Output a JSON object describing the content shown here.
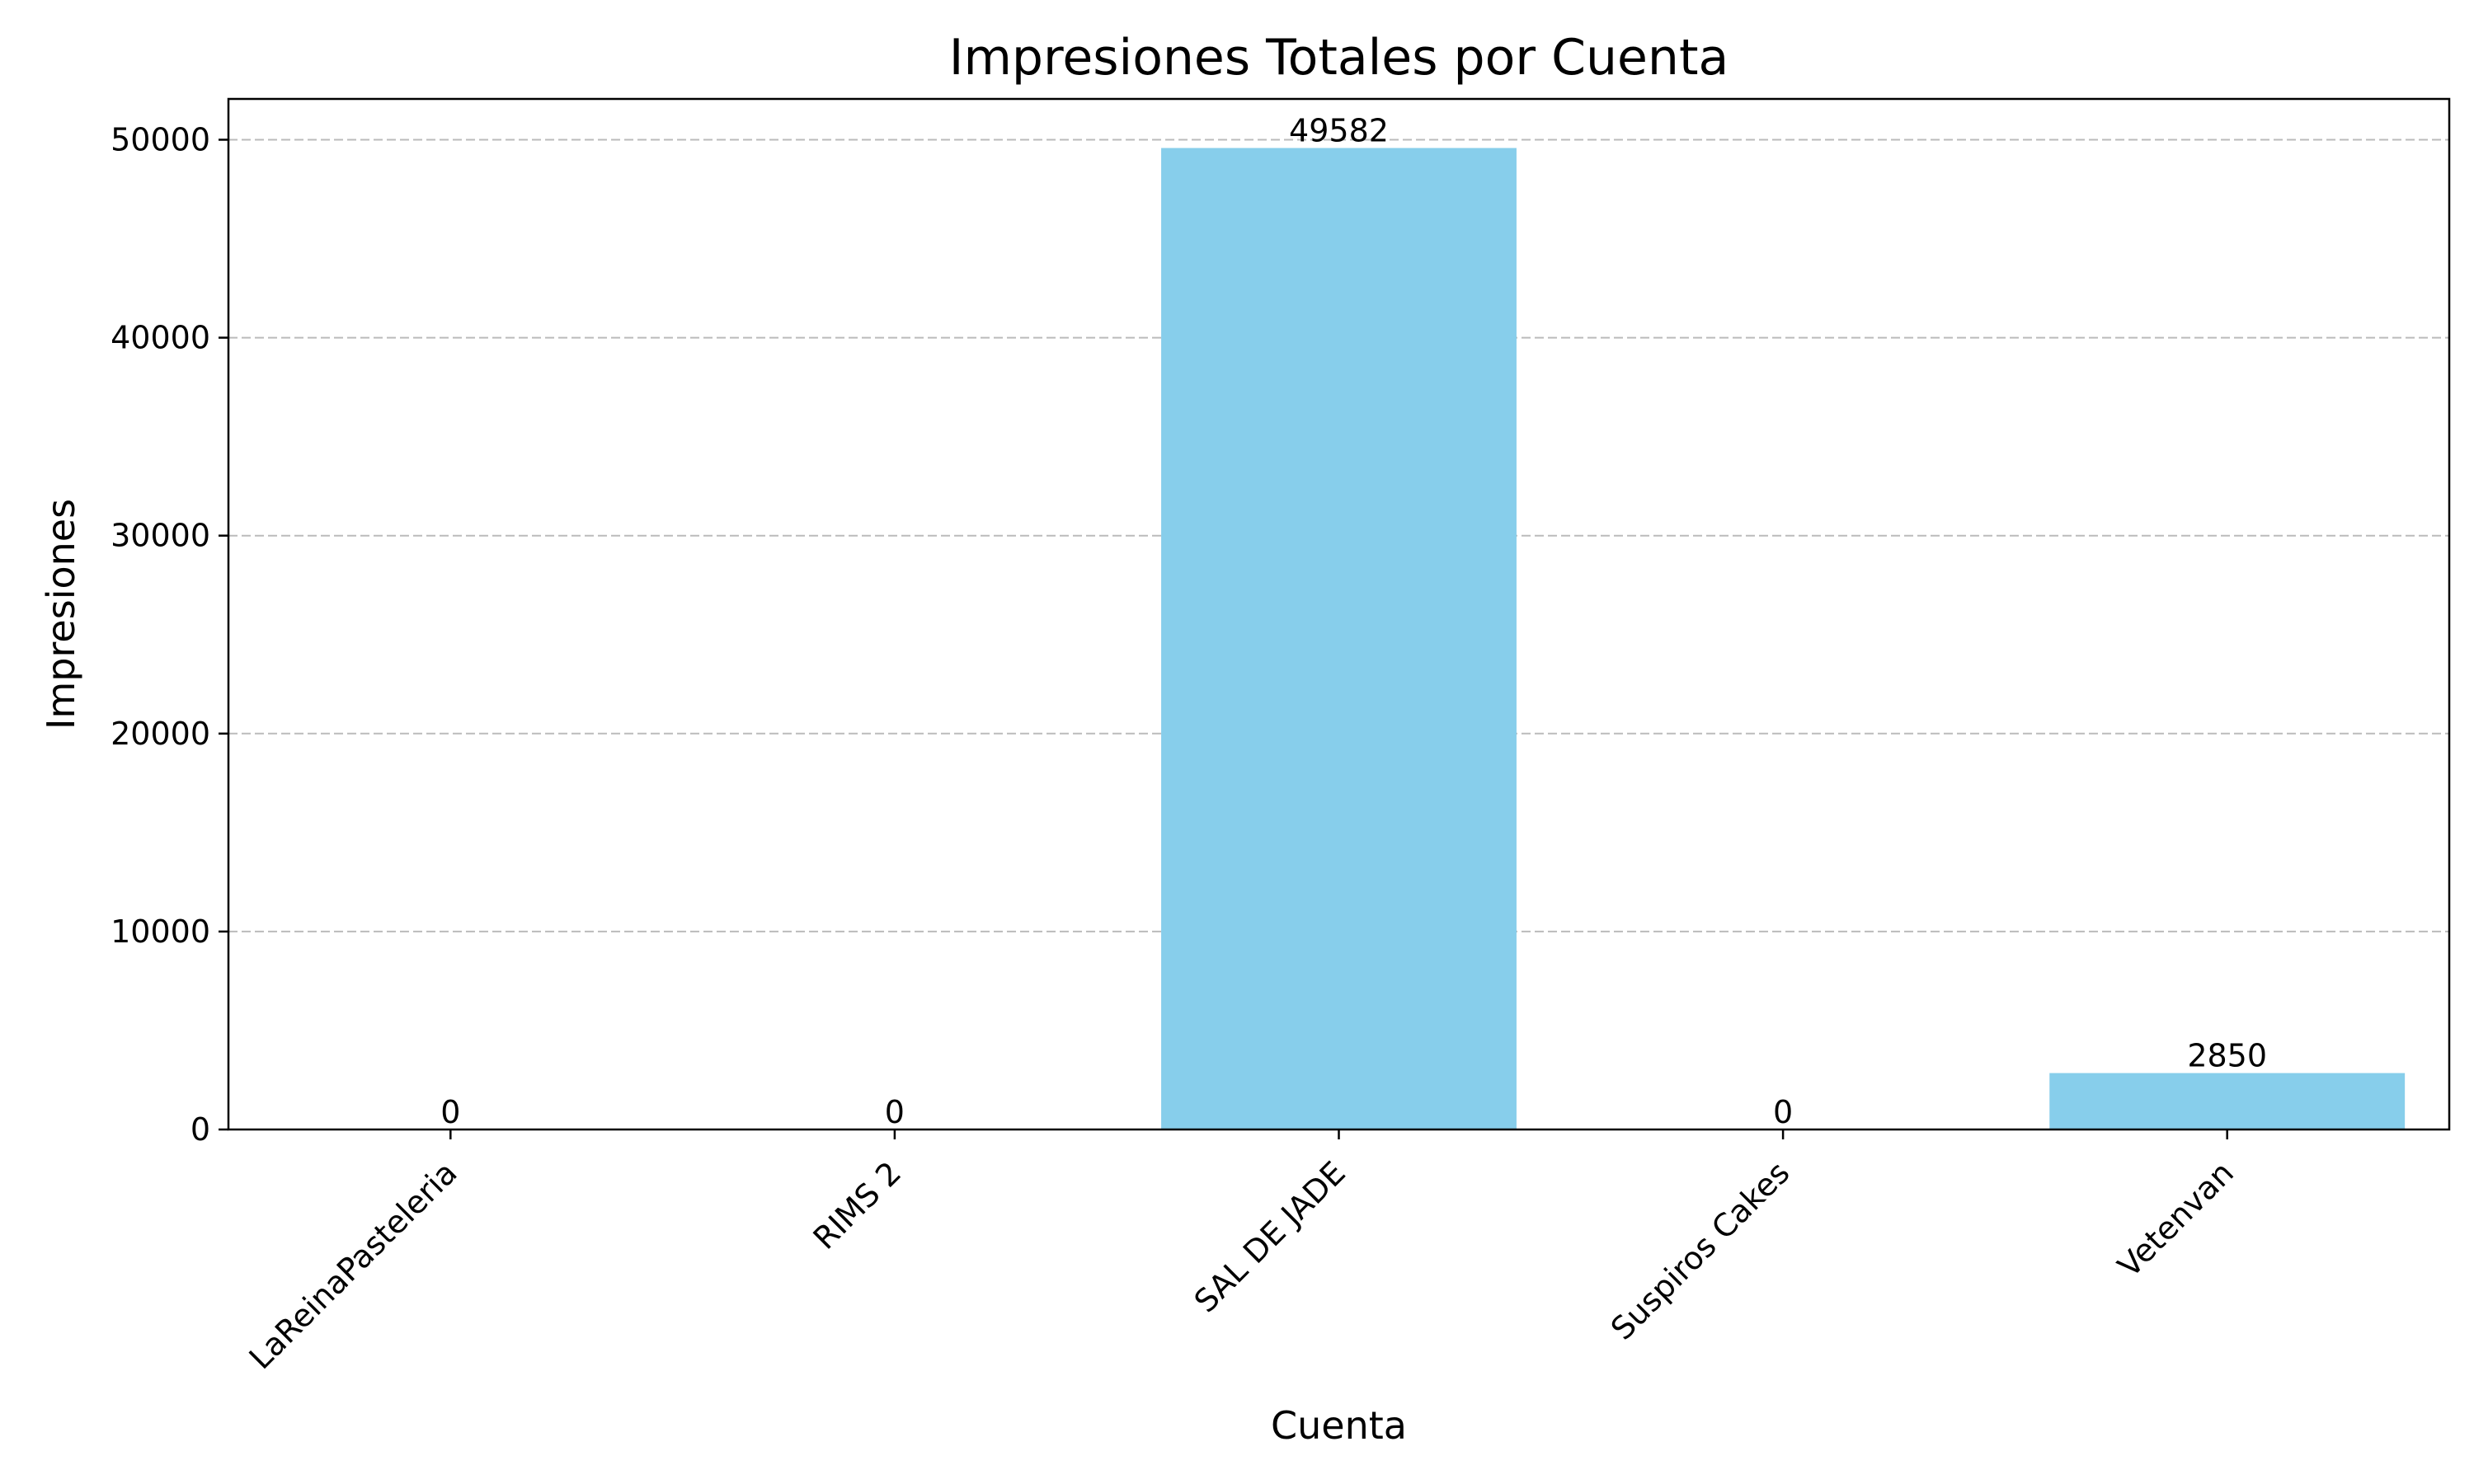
{
  "chart_data": {
    "type": "bar",
    "title": "Impresiones Totales por Cuenta",
    "xlabel": "Cuenta",
    "ylabel": "Impresiones",
    "categories": [
      "LaReinaPasteleria",
      "RIMS 2",
      "SAL DE JADE",
      "Suspiros Cakes",
      "Vetenvan"
    ],
    "values": [
      0,
      0,
      49582,
      0,
      2850
    ],
    "bar_labels": [
      "0",
      "0",
      "49582",
      "0",
      "2850"
    ],
    "y_ticks": [
      0,
      10000,
      20000,
      30000,
      40000,
      50000
    ],
    "y_tick_labels": [
      "0",
      "10000",
      "20000",
      "30000",
      "40000",
      "50000"
    ],
    "ylim": [
      0,
      52061
    ],
    "grid": "y-dashed",
    "bar_color": "#87ceeb"
  }
}
